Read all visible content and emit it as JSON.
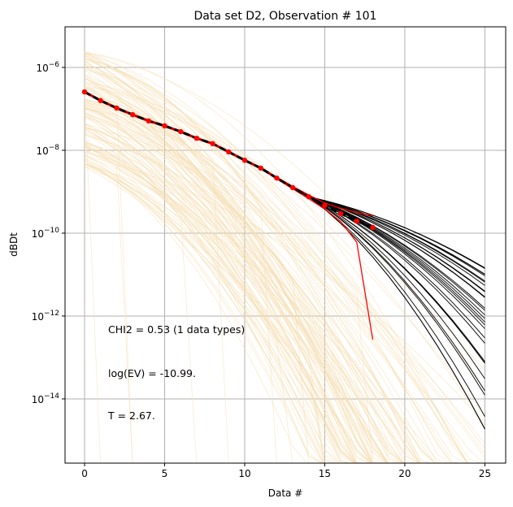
{
  "chart_data": {
    "type": "line",
    "title": "Data set D2, Observation # 101",
    "xlabel": "Data #",
    "ylabel": "dBDt",
    "yscale": "log",
    "xlim": [
      -1.22,
      26.3
    ],
    "ylim_log10": [
      -15.55,
      -5.02
    ],
    "grid": true,
    "x_ticks": [
      0,
      5,
      10,
      15,
      20,
      25
    ],
    "x_tick_labels": [
      "0",
      "5",
      "10",
      "15",
      "20",
      "25"
    ],
    "y_ticks_log10": [
      -6,
      -8,
      -10,
      -12,
      -14
    ],
    "y_tick_labels": [
      {
        "base": "10",
        "exp": "−6"
      },
      {
        "base": "10",
        "exp": "−8"
      },
      {
        "base": "10",
        "exp": "−10"
      },
      {
        "base": "10",
        "exp": "−12"
      },
      {
        "base": "10",
        "exp": "−14"
      }
    ],
    "observed": {
      "x": [
        0,
        1,
        2,
        3,
        4,
        5,
        6,
        7,
        8,
        9,
        10,
        11,
        12,
        13,
        14,
        15,
        16,
        17,
        18
      ],
      "log10_y": [
        -6.59,
        -6.8,
        -6.98,
        -7.14,
        -7.29,
        -7.41,
        -7.55,
        -7.71,
        -7.84,
        -8.04,
        -8.24,
        -8.43,
        -8.67,
        -8.9,
        -9.12,
        -9.33,
        -9.53,
        -9.71,
        -9.86
      ],
      "upper_log10": [
        -6.57,
        -6.78,
        -6.96,
        -7.12,
        -7.27,
        -7.39,
        -7.53,
        -7.69,
        -7.82,
        -8.02,
        -8.22,
        -8.41,
        -8.65,
        -8.87,
        -9.08,
        -9.27,
        -9.4,
        -9.5,
        -9.58
      ],
      "lower_log10": [
        -6.61,
        -6.82,
        -7.0,
        -7.16,
        -7.31,
        -7.43,
        -7.57,
        -7.73,
        -7.86,
        -8.06,
        -8.26,
        -8.45,
        -8.69,
        -8.93,
        -9.17,
        -9.42,
        -9.72,
        -10.22,
        -12.57
      ],
      "color": "#ff0000"
    },
    "prior_realizations": {
      "count": 130,
      "color": "#f5deb3"
    },
    "posterior_realizations": {
      "count": 30,
      "color": "#000000",
      "x_end": 25,
      "log10_y_end_range": [
        -14.9,
        -10.8
      ]
    },
    "annotations": [
      "CHI2 = 0.53 (1 data types)",
      "log(EV) = -10.99.",
      "T = 2.67."
    ]
  }
}
